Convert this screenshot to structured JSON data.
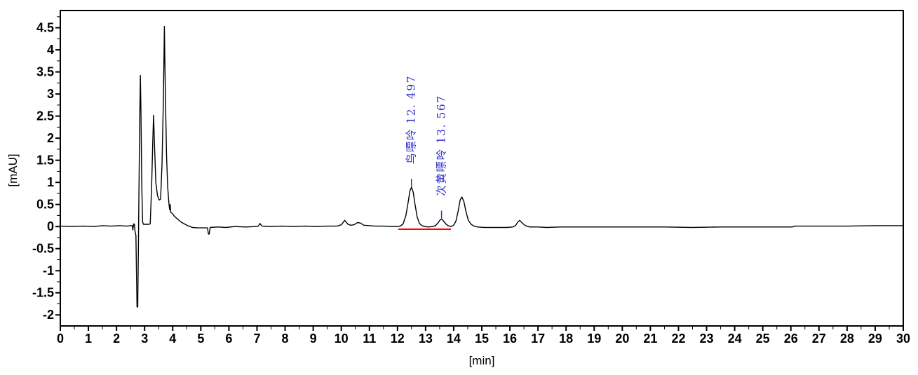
{
  "window": {
    "description": "HPLC chromatogram view"
  },
  "colors": {
    "background": "#ffffff",
    "trace": "#000000",
    "axis": "#000000",
    "peak_label_blue": "#3333cc",
    "integration_baseline_red": "#ff0000"
  },
  "chart_data": {
    "type": "line",
    "title": "",
    "xlabel": "[min]",
    "ylabel": "[mAU]",
    "xlim": [
      0,
      30
    ],
    "ylim": [
      -2.25,
      4.89
    ],
    "grid": false,
    "x_major_step": 1,
    "x_minor_step": 0.5,
    "y_major_step": 0.5,
    "y_minor_step": 0.25,
    "x_tick_labels": [
      "0",
      "1",
      "2",
      "3",
      "4",
      "5",
      "6",
      "7",
      "8",
      "9",
      "10",
      "11",
      "12",
      "13",
      "14",
      "15",
      "16",
      "17",
      "18",
      "19",
      "20",
      "21",
      "22",
      "23",
      "24",
      "25",
      "26",
      "27",
      "28",
      "29",
      "30"
    ],
    "y_tick_labels": [
      "4.5",
      "4",
      "3.5",
      "3",
      "2.5",
      "2",
      "1.5",
      "1",
      "0.5",
      "0",
      "-0.5",
      "-1",
      "-1.5",
      "-2"
    ],
    "labeled_peaks": [
      {
        "label": "鸟嘌呤",
        "annotation": "鸟嘌呤 12. 497",
        "retention_time_min": 12.497,
        "apex_mAU": 0.89
      },
      {
        "label": "次黄嘌呤",
        "annotation": "次黄嘌呤 13. 567",
        "retention_time_min": 13.567,
        "apex_mAU": 0.17
      }
    ],
    "unlabeled_peaks": [
      {
        "retention_time_min": 2.75,
        "apex_mAU": -1.82
      },
      {
        "retention_time_min": 2.85,
        "apex_mAU": 3.42
      },
      {
        "retention_time_min": 3.32,
        "apex_mAU": 2.52
      },
      {
        "retention_time_min": 3.72,
        "apex_mAU": 4.53
      },
      {
        "retention_time_min": 10.12,
        "apex_mAU": 0.14
      },
      {
        "retention_time_min": 10.65,
        "apex_mAU": 0.1
      },
      {
        "retention_time_min": 14.29,
        "apex_mAU": 0.67
      },
      {
        "retention_time_min": 16.35,
        "apex_mAU": 0.14
      }
    ],
    "integration_baseline": {
      "x_start": 12.03,
      "x_end": 13.9,
      "y_mAU": -0.06
    },
    "series": [
      {
        "name": "detector-signal",
        "points": [
          [
            0,
            0.01
          ],
          [
            0.4,
            0
          ],
          [
            0.8,
            0.01
          ],
          [
            1.2,
            0
          ],
          [
            1.5,
            0.02
          ],
          [
            1.8,
            0.01
          ],
          [
            2.1,
            0.02
          ],
          [
            2.35,
            0.01
          ],
          [
            2.5,
            0.02
          ],
          [
            2.56,
            0.02
          ],
          [
            2.58,
            -0.08
          ],
          [
            2.61,
            0.06
          ],
          [
            2.64,
            0.05
          ],
          [
            2.66,
            -0.12
          ],
          [
            2.69,
            -0.2
          ],
          [
            2.71,
            -1.05
          ],
          [
            2.73,
            -1.82
          ],
          [
            2.755,
            -1.82
          ],
          [
            2.78,
            -0.4
          ],
          [
            2.8,
            0.9
          ],
          [
            2.83,
            2.6
          ],
          [
            2.85,
            3.42
          ],
          [
            2.87,
            2.6
          ],
          [
            2.9,
            0.9
          ],
          [
            2.93,
            0.1
          ],
          [
            2.96,
            0.05
          ],
          [
            3.05,
            0.05
          ],
          [
            3.15,
            0.05
          ],
          [
            3.2,
            0.06
          ],
          [
            3.25,
            0.9
          ],
          [
            3.29,
            1.9
          ],
          [
            3.32,
            2.52
          ],
          [
            3.35,
            1.9
          ],
          [
            3.4,
            1.0
          ],
          [
            3.46,
            0.7
          ],
          [
            3.52,
            0.6
          ],
          [
            3.57,
            0.62
          ],
          [
            3.62,
            1.4
          ],
          [
            3.67,
            2.9
          ],
          [
            3.705,
            4.53
          ],
          [
            3.74,
            3.0
          ],
          [
            3.78,
            1.6
          ],
          [
            3.82,
            0.9
          ],
          [
            3.86,
            0.55
          ],
          [
            3.89,
            0.38
          ],
          [
            3.91,
            0.5
          ],
          [
            3.93,
            0.32
          ],
          [
            3.98,
            0.3
          ],
          [
            4.05,
            0.24
          ],
          [
            4.15,
            0.18
          ],
          [
            4.3,
            0.1
          ],
          [
            4.5,
            0.03
          ],
          [
            4.7,
            -0.02
          ],
          [
            4.9,
            -0.03
          ],
          [
            5.1,
            -0.03
          ],
          [
            5.24,
            -0.03
          ],
          [
            5.27,
            -0.17
          ],
          [
            5.3,
            -0.17
          ],
          [
            5.33,
            -0.02
          ],
          [
            5.6,
            -0.01
          ],
          [
            5.9,
            -0.02
          ],
          [
            6.2,
            0
          ],
          [
            6.6,
            -0.01
          ],
          [
            6.95,
            0
          ],
          [
            7.05,
            0.01
          ],
          [
            7.1,
            0.07
          ],
          [
            7.18,
            0.01
          ],
          [
            7.5,
            0
          ],
          [
            7.9,
            0.01
          ],
          [
            8.3,
            0
          ],
          [
            8.7,
            0.01
          ],
          [
            9.1,
            0
          ],
          [
            9.5,
            0.01
          ],
          [
            9.85,
            0.01
          ],
          [
            10.0,
            0.04
          ],
          [
            10.12,
            0.14
          ],
          [
            10.24,
            0.05
          ],
          [
            10.33,
            0.03
          ],
          [
            10.45,
            0.04
          ],
          [
            10.58,
            0.09
          ],
          [
            10.68,
            0.08
          ],
          [
            10.8,
            0.03
          ],
          [
            11.0,
            0.02
          ],
          [
            11.2,
            0.01
          ],
          [
            11.5,
            0.01
          ],
          [
            11.8,
            0
          ],
          [
            12.0,
            0
          ],
          [
            12.1,
            0.01
          ],
          [
            12.2,
            0.06
          ],
          [
            12.3,
            0.25
          ],
          [
            12.38,
            0.55
          ],
          [
            12.44,
            0.8
          ],
          [
            12.497,
            0.89
          ],
          [
            12.56,
            0.78
          ],
          [
            12.62,
            0.52
          ],
          [
            12.7,
            0.22
          ],
          [
            12.78,
            0.07
          ],
          [
            12.87,
            0.02
          ],
          [
            12.97,
            0
          ],
          [
            13.1,
            -0.01
          ],
          [
            13.25,
            0
          ],
          [
            13.35,
            0.02
          ],
          [
            13.45,
            0.09
          ],
          [
            13.52,
            0.15
          ],
          [
            13.567,
            0.17
          ],
          [
            13.63,
            0.13
          ],
          [
            13.72,
            0.06
          ],
          [
            13.8,
            0.02
          ],
          [
            13.9,
            0
          ],
          [
            14.0,
            0.03
          ],
          [
            14.08,
            0.12
          ],
          [
            14.16,
            0.35
          ],
          [
            14.23,
            0.6
          ],
          [
            14.29,
            0.67
          ],
          [
            14.36,
            0.57
          ],
          [
            14.44,
            0.33
          ],
          [
            14.52,
            0.14
          ],
          [
            14.62,
            0.05
          ],
          [
            14.72,
            0.01
          ],
          [
            14.85,
            -0.01
          ],
          [
            15.1,
            -0.02
          ],
          [
            15.5,
            -0.02
          ],
          [
            15.9,
            -0.02
          ],
          [
            16.1,
            -0.01
          ],
          [
            16.2,
            0.02
          ],
          [
            16.28,
            0.1
          ],
          [
            16.35,
            0.14
          ],
          [
            16.44,
            0.08
          ],
          [
            16.55,
            0.02
          ],
          [
            16.7,
            -0.01
          ],
          [
            17.0,
            -0.01
          ],
          [
            17.3,
            -0.02
          ],
          [
            17.8,
            -0.01
          ],
          [
            18.5,
            -0.01
          ],
          [
            19.5,
            -0.01
          ],
          [
            20.5,
            -0.01
          ],
          [
            21.5,
            -0.01
          ],
          [
            22.5,
            -0.02
          ],
          [
            23.5,
            -0.01
          ],
          [
            24.5,
            -0.01
          ],
          [
            25.5,
            -0.01
          ],
          [
            26.05,
            -0.01
          ],
          [
            26.15,
            0.01
          ],
          [
            27,
            0.01
          ],
          [
            28,
            0.01
          ],
          [
            29,
            0.02
          ],
          [
            30,
            0.02
          ]
        ]
      }
    ]
  }
}
